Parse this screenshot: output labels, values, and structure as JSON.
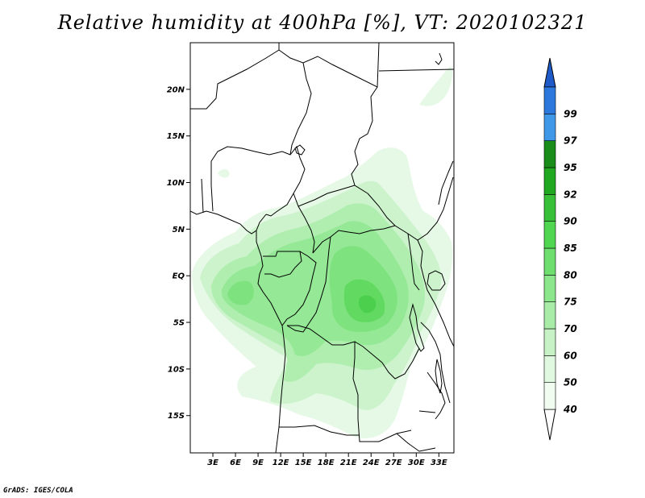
{
  "title": "Relative humidity at 400hPa [%], VT: 2020102321",
  "credit": "GrADS: IGES/COLA",
  "map": {
    "lat_range": [
      -19,
      25
    ],
    "lon_range": [
      0,
      35
    ],
    "lat_ticks": [
      {
        "value": 20,
        "label": "20N"
      },
      {
        "value": 15,
        "label": "15N"
      },
      {
        "value": 10,
        "label": "10N"
      },
      {
        "value": 5,
        "label": "5N"
      },
      {
        "value": 0,
        "label": "EQ"
      },
      {
        "value": -5,
        "label": "5S"
      },
      {
        "value": -10,
        "label": "10S"
      },
      {
        "value": -15,
        "label": "15S"
      }
    ],
    "lon_ticks": [
      {
        "value": 3,
        "label": "3E"
      },
      {
        "value": 6,
        "label": "6E"
      },
      {
        "value": 9,
        "label": "9E"
      },
      {
        "value": 12,
        "label": "12E"
      },
      {
        "value": 15,
        "label": "15E"
      },
      {
        "value": 18,
        "label": "18E"
      },
      {
        "value": 21,
        "label": "21E"
      },
      {
        "value": 24,
        "label": "24E"
      },
      {
        "value": 27,
        "label": "27E"
      },
      {
        "value": 30,
        "label": "30E"
      },
      {
        "value": 33,
        "label": "33E"
      }
    ]
  },
  "colorbar": {
    "levels": [
      "40",
      "50",
      "60",
      "70",
      "75",
      "80",
      "85",
      "90",
      "92",
      "95",
      "97",
      "99"
    ],
    "colors": [
      "#f0fcf0",
      "#e0f8e0",
      "#c6f2c6",
      "#a8eca8",
      "#8ce68c",
      "#6edf6e",
      "#50d650",
      "#38c038",
      "#20a820",
      "#1a8c1a",
      "#4098e8",
      "#2c78dc",
      "#1e5ac8"
    ],
    "below_color": "#ffffff"
  }
}
